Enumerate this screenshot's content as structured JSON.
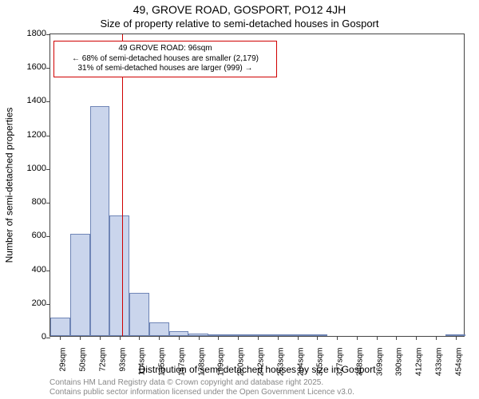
{
  "header": {
    "title": "49, GROVE ROAD, GOSPORT, PO12 4JH",
    "subtitle": "Size of property relative to semi-detached houses in Gosport"
  },
  "axes": {
    "y_label": "Number of semi-detached properties",
    "x_label": "Distribution of semi-detached houses by size in Gosport",
    "ylim": [
      0,
      1800
    ],
    "y_ticks": [
      0,
      200,
      400,
      600,
      800,
      1000,
      1200,
      1400,
      1600,
      1800
    ],
    "x_categories": [
      "29sqm",
      "50sqm",
      "72sqm",
      "93sqm",
      "114sqm",
      "135sqm",
      "157sqm",
      "178sqm",
      "199sqm",
      "220sqm",
      "242sqm",
      "263sqm",
      "284sqm",
      "305sqm",
      "327sqm",
      "348sqm",
      "369sqm",
      "390sqm",
      "412sqm",
      "433sqm",
      "454sqm"
    ]
  },
  "histogram": {
    "type": "histogram",
    "bar_fill": "#cad5ec",
    "bar_stroke": "#6f85b6",
    "bar_width_ratio": 1.0,
    "values": [
      110,
      605,
      1365,
      715,
      255,
      80,
      30,
      15,
      8,
      3,
      2,
      1,
      1,
      8,
      0,
      0,
      0,
      0,
      0,
      0,
      3
    ]
  },
  "reference": {
    "value_sqm": 96,
    "line_color": "#d00000",
    "callout_border": "#d00000",
    "callout_bg": "#ffffff",
    "lines": {
      "title": "49 GROVE ROAD: 96sqm",
      "smaller": "← 68% of semi-detached houses are smaller (2,179)",
      "larger": "31% of semi-detached houses are larger (999) →"
    }
  },
  "style": {
    "background_color": "#ffffff",
    "axis_color": "#444444",
    "text_color": "#000000",
    "footer_color": "#888888",
    "title_fontsize": 14,
    "subtitle_fontsize": 13,
    "axis_label_fontsize": 12,
    "tick_fontsize": 11,
    "x_tick_fontsize": 10,
    "callout_fontsize": 10,
    "footer_fontsize": 10
  },
  "footer": {
    "line1": "Contains HM Land Registry data © Crown copyright and database right 2025.",
    "line2": "Contains public sector information licensed under the Open Government Licence v3.0."
  }
}
